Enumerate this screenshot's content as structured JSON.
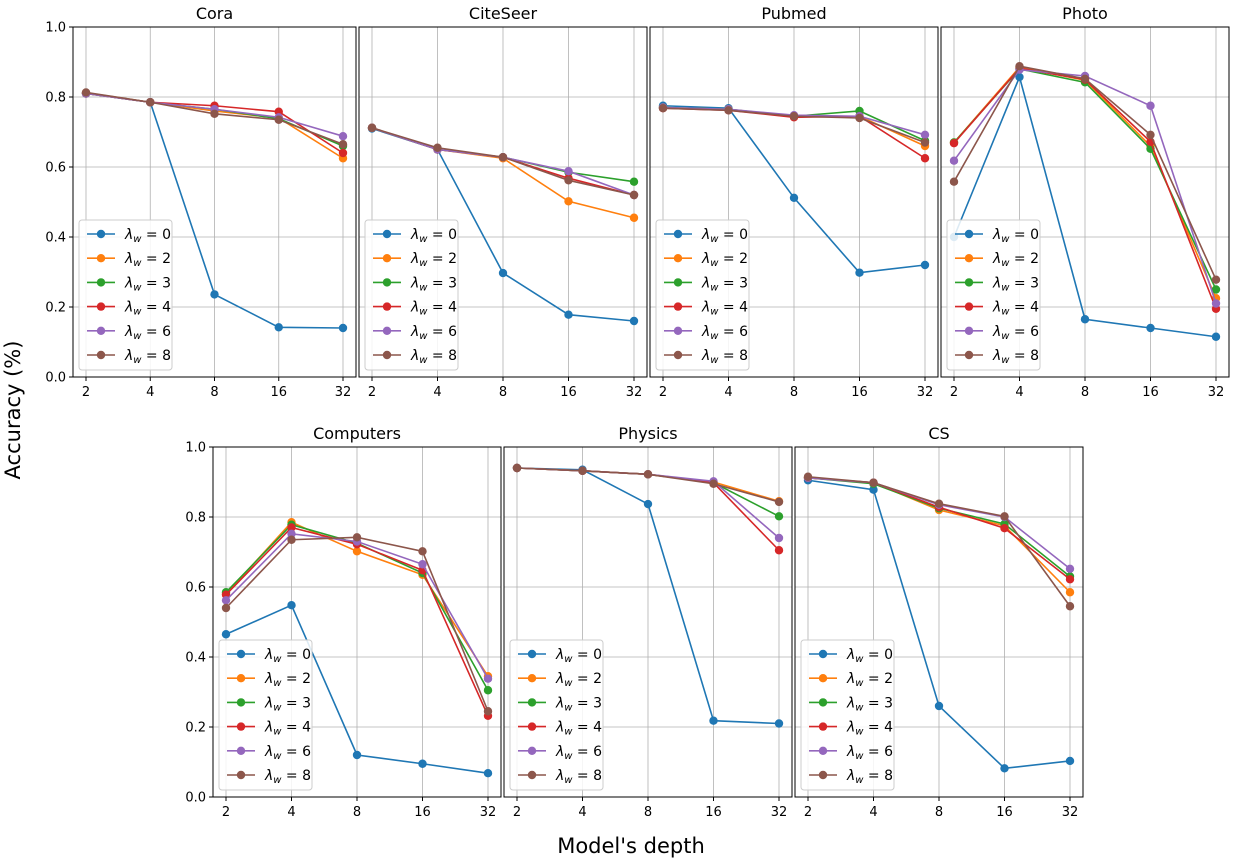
{
  "chart_data": {
    "type": "line",
    "suptitle_y": "Accuracy (%)",
    "suptitle_x": "Model's depth",
    "x_ticks": [
      "2",
      "4",
      "8",
      "16",
      "32"
    ],
    "y_ticks": [
      "0.0",
      "0.2",
      "0.4",
      "0.6",
      "0.8",
      "1.0"
    ],
    "ylim": [
      0,
      1
    ],
    "legend_prefix": "λ",
    "legend_subscript": "w",
    "series_meta": [
      {
        "lambda": "0",
        "color": "#1f77b4"
      },
      {
        "lambda": "2",
        "color": "#ff7f0e"
      },
      {
        "lambda": "3",
        "color": "#2ca02c"
      },
      {
        "lambda": "4",
        "color": "#d62728"
      },
      {
        "lambda": "6",
        "color": "#9467bd"
      },
      {
        "lambda": "8",
        "color": "#8c564b"
      }
    ],
    "panels": [
      {
        "title": "Cora",
        "values": [
          [
            0.81,
            0.785,
            0.236,
            0.142,
            0.14
          ],
          [
            0.812,
            0.785,
            0.76,
            0.74,
            0.625
          ],
          [
            0.81,
            0.785,
            0.765,
            0.738,
            0.66
          ],
          [
            0.81,
            0.785,
            0.775,
            0.758,
            0.64
          ],
          [
            0.81,
            0.785,
            0.765,
            0.742,
            0.688
          ],
          [
            0.813,
            0.785,
            0.752,
            0.735,
            0.665
          ]
        ]
      },
      {
        "title": "CiteSeer",
        "values": [
          [
            0.71,
            0.65,
            0.297,
            0.178,
            0.16
          ],
          [
            0.712,
            0.65,
            0.625,
            0.502,
            0.455
          ],
          [
            0.712,
            0.65,
            0.628,
            0.585,
            0.558
          ],
          [
            0.712,
            0.65,
            0.628,
            0.568,
            0.52
          ],
          [
            0.712,
            0.65,
            0.628,
            0.588,
            0.52
          ],
          [
            0.712,
            0.655,
            0.628,
            0.562,
            0.52
          ]
        ]
      },
      {
        "title": "Pubmed",
        "values": [
          [
            0.775,
            0.768,
            0.512,
            0.298,
            0.32
          ],
          [
            0.77,
            0.765,
            0.745,
            0.745,
            0.66
          ],
          [
            0.77,
            0.765,
            0.745,
            0.76,
            0.675
          ],
          [
            0.768,
            0.762,
            0.742,
            0.745,
            0.625
          ],
          [
            0.77,
            0.765,
            0.748,
            0.745,
            0.692
          ],
          [
            0.768,
            0.762,
            0.745,
            0.74,
            0.67
          ]
        ]
      },
      {
        "title": "Photo",
        "values": [
          [
            0.4,
            0.857,
            0.165,
            0.14,
            0.115
          ],
          [
            0.67,
            0.885,
            0.848,
            0.66,
            0.225
          ],
          [
            0.67,
            0.88,
            0.842,
            0.652,
            0.25
          ],
          [
            0.668,
            0.882,
            0.85,
            0.672,
            0.195
          ],
          [
            0.618,
            0.878,
            0.86,
            0.775,
            0.21
          ],
          [
            0.558,
            0.888,
            0.852,
            0.692,
            0.278
          ]
        ]
      },
      {
        "title": "Computers",
        "values": [
          [
            0.465,
            0.548,
            0.12,
            0.095,
            0.068
          ],
          [
            0.58,
            0.785,
            0.702,
            0.635,
            0.345
          ],
          [
            0.585,
            0.778,
            0.725,
            0.64,
            0.305
          ],
          [
            0.578,
            0.77,
            0.722,
            0.648,
            0.232
          ],
          [
            0.562,
            0.752,
            0.73,
            0.665,
            0.338
          ],
          [
            0.54,
            0.735,
            0.742,
            0.702,
            0.245
          ]
        ]
      },
      {
        "title": "Physics",
        "values": [
          [
            0.94,
            0.935,
            0.837,
            0.218,
            0.21
          ],
          [
            0.94,
            0.932,
            0.922,
            0.9,
            0.845
          ],
          [
            0.94,
            0.932,
            0.922,
            0.898,
            0.802
          ],
          [
            0.94,
            0.932,
            0.922,
            0.898,
            0.705
          ],
          [
            0.94,
            0.932,
            0.922,
            0.902,
            0.74
          ],
          [
            0.94,
            0.932,
            0.922,
            0.895,
            0.843
          ]
        ]
      },
      {
        "title": "CS",
        "values": [
          [
            0.905,
            0.878,
            0.26,
            0.082,
            0.103
          ],
          [
            0.912,
            0.898,
            0.82,
            0.775,
            0.585
          ],
          [
            0.912,
            0.895,
            0.825,
            0.78,
            0.63
          ],
          [
            0.912,
            0.898,
            0.828,
            0.768,
            0.622
          ],
          [
            0.912,
            0.898,
            0.835,
            0.8,
            0.652
          ],
          [
            0.915,
            0.898,
            0.838,
            0.802,
            0.545
          ]
        ]
      }
    ]
  }
}
